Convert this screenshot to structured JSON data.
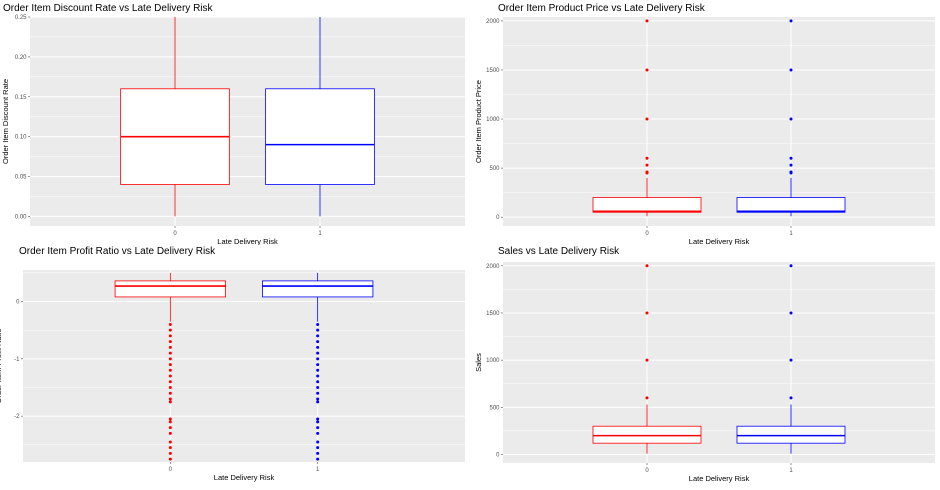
{
  "colors": {
    "panel_bg": "#ebebeb",
    "grid": "#ffffff",
    "group0": "#ff0000",
    "group1": "#0000ff",
    "tick_text": "#4d4d4d"
  },
  "chart_data": [
    {
      "type": "boxplot",
      "title": "Order Item Discount Rate vs Late Delivery Risk",
      "xlabel": "Late Delivery Risk",
      "ylabel": "Order Item Discount Rate",
      "categories": [
        "0",
        "1"
      ],
      "ylim": [
        -0.012,
        0.25
      ],
      "yticks": [
        0.0,
        0.05,
        0.1,
        0.15,
        0.2,
        0.25
      ],
      "ytick_labels": [
        "0.00",
        "0.05",
        "0.10",
        "0.15",
        "0.20",
        "0.25"
      ],
      "boxes": [
        {
          "category": "0",
          "min": 0.0,
          "q1": 0.04,
          "median": 0.1,
          "q3": 0.16,
          "max": 0.25,
          "outliers": []
        },
        {
          "category": "1",
          "min": 0.0,
          "q1": 0.04,
          "median": 0.09,
          "q3": 0.16,
          "max": 0.25,
          "outliers": []
        }
      ]
    },
    {
      "type": "boxplot",
      "title": "Order Item Product Price vs Late Delivery Risk",
      "xlabel": "Late Delivery Risk",
      "ylabel": "Order Item Product Price",
      "categories": [
        "0",
        "1"
      ],
      "ylim": [
        -90,
        2040
      ],
      "yticks": [
        0,
        500,
        1000,
        1500,
        2000
      ],
      "ytick_labels": [
        "0",
        "500",
        "1000",
        "1500",
        "2000"
      ],
      "boxes": [
        {
          "category": "0",
          "min": 10,
          "q1": 50,
          "median": 60,
          "q3": 200,
          "max": 400,
          "outliers": [
            450,
            460,
            530,
            600,
            1000,
            1500,
            2000
          ]
        },
        {
          "category": "1",
          "min": 10,
          "q1": 50,
          "median": 60,
          "q3": 200,
          "max": 400,
          "outliers": [
            450,
            460,
            530,
            600,
            1000,
            1500,
            2000
          ]
        }
      ]
    },
    {
      "type": "boxplot",
      "title": "Order Item Profit Ratio vs Late Delivery Risk",
      "xlabel": "Late Delivery Risk",
      "ylabel": "Order Item Profit Ratio",
      "categories": [
        "0",
        "1"
      ],
      "ylim": [
        -2.8,
        0.55
      ],
      "yticks": [
        -2,
        -1,
        0
      ],
      "ytick_labels": [
        "-2",
        "-1",
        "0"
      ],
      "boxes": [
        {
          "category": "0",
          "min": -0.35,
          "q1": 0.08,
          "median": 0.27,
          "q3": 0.36,
          "max": 0.5,
          "outliers": [
            -0.4,
            -0.5,
            -0.6,
            -0.7,
            -0.8,
            -0.9,
            -1.0,
            -1.1,
            -1.2,
            -1.3,
            -1.4,
            -1.5,
            -1.6,
            -1.7,
            -1.75,
            -2.05,
            -2.1,
            -2.2,
            -2.3,
            -2.45,
            -2.55,
            -2.65,
            -2.75
          ]
        },
        {
          "category": "1",
          "min": -0.35,
          "q1": 0.08,
          "median": 0.27,
          "q3": 0.36,
          "max": 0.5,
          "outliers": [
            -0.4,
            -0.5,
            -0.6,
            -0.7,
            -0.8,
            -0.9,
            -1.0,
            -1.1,
            -1.2,
            -1.3,
            -1.4,
            -1.5,
            -1.6,
            -1.7,
            -1.75,
            -2.05,
            -2.1,
            -2.2,
            -2.3,
            -2.45,
            -2.55,
            -2.65,
            -2.75
          ]
        }
      ]
    },
    {
      "type": "boxplot",
      "title": "Sales vs Late Delivery Risk",
      "xlabel": "Late Delivery Risk",
      "ylabel": "Sales",
      "categories": [
        "0",
        "1"
      ],
      "ylim": [
        -90,
        2040
      ],
      "yticks": [
        0,
        500,
        1000,
        1500,
        2000
      ],
      "ytick_labels": [
        "0",
        "500",
        "1000",
        "1500",
        "2000"
      ],
      "boxes": [
        {
          "category": "0",
          "min": 10,
          "q1": 120,
          "median": 200,
          "q3": 300,
          "max": 530,
          "outliers": [
            600,
            1000,
            1500,
            2000
          ]
        },
        {
          "category": "1",
          "min": 10,
          "q1": 120,
          "median": 200,
          "q3": 300,
          "max": 530,
          "outliers": [
            600,
            1000,
            1500,
            2000
          ]
        }
      ]
    }
  ]
}
